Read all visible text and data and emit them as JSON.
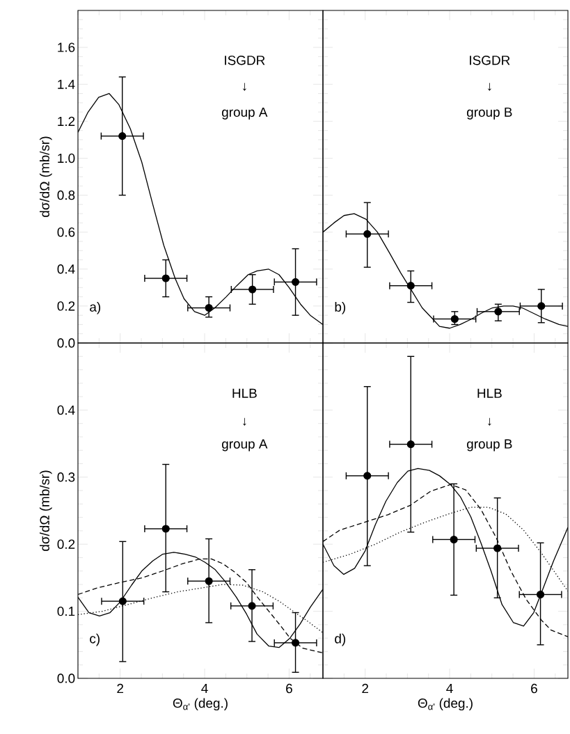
{
  "chart_data": [
    {
      "type": "line",
      "ylabel": "dσ/dΩ (mb/sr)",
      "xlim": [
        1,
        6.8
      ],
      "ylim": [
        0,
        1.8
      ],
      "xticks": [
        2,
        4,
        6
      ],
      "yticks": [
        {
          "value": 0,
          "label": "0.0"
        },
        {
          "value": 0.2,
          "label": "0.2"
        },
        {
          "value": 0.4,
          "label": "0.4"
        },
        {
          "value": 0.6,
          "label": "0.6"
        },
        {
          "value": 0.8,
          "label": "0.8"
        },
        {
          "value": 1.0,
          "label": "1.0"
        },
        {
          "value": 1.2,
          "label": "1.2"
        },
        {
          "value": 1.4,
          "label": "1.4"
        },
        {
          "value": 1.6,
          "label": "1.6"
        }
      ],
      "tick_labels": "y",
      "annotations": [
        "ISGDR",
        "↓",
        "group A",
        "a)"
      ],
      "series": [
        {
          "type": "scatter",
          "color": "#000000",
          "marker": "circle",
          "x": [
            2.05,
            3.08,
            4.1,
            5.13,
            6.15
          ],
          "values": [
            1.12,
            0.35,
            0.19,
            0.29,
            0.33
          ],
          "errors": [
            [
              0.8,
              1.44
            ],
            [
              0.25,
              0.45
            ],
            [
              0.14,
              0.25
            ],
            [
              0.21,
              0.37
            ],
            [
              0.15,
              0.51
            ]
          ],
          "xerrors": [
            0.5,
            0.5,
            0.5,
            0.5,
            0.5
          ]
        },
        {
          "color": "#000000",
          "line_style": "solid",
          "marker": "none",
          "x": [
            1.0,
            1.24,
            1.49,
            1.74,
            1.97,
            2.24,
            2.51,
            2.76,
            3.03,
            3.3,
            3.51,
            3.76,
            4.0,
            4.24,
            4.51,
            4.76,
            5.03,
            5.24,
            5.51,
            5.76,
            6.0,
            6.27,
            6.5,
            6.8
          ],
          "values": [
            1.14,
            1.25,
            1.33,
            1.35,
            1.29,
            1.16,
            0.98,
            0.76,
            0.53,
            0.35,
            0.24,
            0.17,
            0.15,
            0.19,
            0.25,
            0.31,
            0.37,
            0.39,
            0.4,
            0.37,
            0.3,
            0.21,
            0.15,
            0.1
          ]
        }
      ]
    },
    {
      "type": "line",
      "xlim": [
        1,
        6.8
      ],
      "ylim": [
        0,
        1.8
      ],
      "xticks": [
        2,
        4,
        6
      ],
      "yticks": [
        0,
        0.2,
        0.4,
        0.6,
        0.8,
        1.0,
        1.2,
        1.4,
        1.6
      ],
      "tick_labels": false,
      "annotations": [
        "ISGDR",
        "↓",
        "group B",
        "b)"
      ],
      "series": [
        {
          "type": "scatter",
          "color": "#000000",
          "marker": "circle",
          "x": [
            2.05,
            3.08,
            4.12,
            5.15,
            6.17
          ],
          "values": [
            0.59,
            0.31,
            0.13,
            0.17,
            0.2
          ],
          "errors": [
            [
              0.41,
              0.76
            ],
            [
              0.22,
              0.39
            ],
            [
              0.1,
              0.17
            ],
            [
              0.12,
              0.21
            ],
            [
              0.11,
              0.29
            ]
          ],
          "xerrors": [
            0.5,
            0.5,
            0.5,
            0.5,
            0.5
          ]
        },
        {
          "color": "#000000",
          "line_style": "solid",
          "marker": "none",
          "x": [
            1.0,
            1.26,
            1.5,
            1.74,
            2.02,
            2.29,
            2.57,
            2.84,
            3.11,
            3.35,
            3.6,
            3.76,
            4.0,
            4.25,
            4.52,
            4.74,
            5.01,
            5.28,
            5.5,
            5.72,
            5.99,
            6.26,
            6.59,
            6.8
          ],
          "values": [
            0.6,
            0.65,
            0.69,
            0.7,
            0.67,
            0.6,
            0.49,
            0.38,
            0.28,
            0.19,
            0.13,
            0.09,
            0.08,
            0.1,
            0.13,
            0.16,
            0.19,
            0.2,
            0.2,
            0.19,
            0.16,
            0.13,
            0.1,
            0.09
          ]
        }
      ]
    },
    {
      "type": "line",
      "xlabel": "Θ$_{α'}$ (deg.)",
      "ylabel": "dσ/dΩ (mb/sr)",
      "xlim": [
        1,
        6.8
      ],
      "ylim": [
        0,
        0.5
      ],
      "xticks": [
        2,
        4,
        6
      ],
      "yticks": [
        {
          "value": 0,
          "label": "0.0"
        },
        0.1,
        0.2,
        0.3,
        0.4
      ],
      "annotations": [
        "HLB",
        "↓",
        "group A",
        "c)"
      ],
      "series": [
        {
          "type": "scatter",
          "color": "#000000",
          "marker": "circle",
          "x": [
            2.06,
            3.08,
            4.1,
            5.12,
            6.15
          ],
          "values": [
            0.115,
            0.223,
            0.145,
            0.108,
            0.053
          ],
          "errors": [
            [
              0.025,
              0.204
            ],
            [
              0.129,
              0.319
            ],
            [
              0.083,
              0.208
            ],
            [
              0.055,
              0.162
            ],
            [
              0.009,
              0.098
            ]
          ],
          "xerrors": [
            0.5,
            0.5,
            0.5,
            0.5,
            0.5
          ]
        },
        {
          "color": "#000000",
          "line_style": "solid",
          "marker": "none",
          "x": [
            1.0,
            1.26,
            1.51,
            1.76,
            2.0,
            2.27,
            2.51,
            2.77,
            3.0,
            3.27,
            3.54,
            3.78,
            4.01,
            4.25,
            4.49,
            4.75,
            4.99,
            5.24,
            5.52,
            5.76,
            6.02,
            6.26,
            6.5,
            6.8
          ],
          "values": [
            0.121,
            0.098,
            0.093,
            0.098,
            0.114,
            0.139,
            0.16,
            0.175,
            0.185,
            0.188,
            0.185,
            0.181,
            0.173,
            0.162,
            0.144,
            0.121,
            0.096,
            0.066,
            0.048,
            0.046,
            0.06,
            0.081,
            0.106,
            0.133
          ]
        },
        {
          "color": "#000000",
          "line_style": "dashed",
          "marker": "none",
          "x": [
            1.0,
            1.47,
            2.0,
            2.53,
            3.0,
            3.48,
            3.89,
            4.16,
            4.43,
            4.72,
            4.99,
            5.25,
            5.52,
            5.79,
            6.02,
            6.32,
            6.8
          ],
          "values": [
            0.125,
            0.135,
            0.143,
            0.15,
            0.16,
            0.171,
            0.178,
            0.178,
            0.171,
            0.158,
            0.143,
            0.121,
            0.1,
            0.079,
            0.06,
            0.045,
            0.038
          ]
        },
        {
          "color": "#000000",
          "line_style": "dotted",
          "marker": "none",
          "x": [
            1.0,
            1.58,
            2.18,
            2.77,
            3.36,
            3.95,
            4.43,
            4.9,
            5.38,
            5.79,
            6.14,
            6.44,
            6.8
          ],
          "values": [
            0.095,
            0.1,
            0.11,
            0.12,
            0.129,
            0.135,
            0.14,
            0.139,
            0.129,
            0.114,
            0.098,
            0.085,
            0.068
          ]
        }
      ]
    },
    {
      "type": "line",
      "xlabel": "Θ$_{α'}$ (deg.)",
      "xlim": [
        1,
        6.8
      ],
      "ylim": [
        0,
        0.5
      ],
      "xticks": [
        2,
        4,
        6
      ],
      "yticks": [
        0,
        0.1,
        0.2,
        0.3,
        0.4
      ],
      "tick_labels": "x",
      "annotations": [
        "HLB",
        "↓",
        "group B",
        "d)"
      ],
      "series": [
        {
          "type": "scatter",
          "color": "#000000",
          "marker": "circle",
          "x": [
            2.05,
            3.08,
            4.1,
            5.13,
            6.15
          ],
          "values": [
            0.302,
            0.349,
            0.207,
            0.194,
            0.125
          ],
          "errors": [
            [
              0.168,
              0.435
            ],
            [
              0.218,
              0.48
            ],
            [
              0.124,
              0.29
            ],
            [
              0.12,
              0.269
            ],
            [
              0.05,
              0.202
            ]
          ],
          "xerrors": [
            0.5,
            0.5,
            0.5,
            0.5,
            0.5
          ]
        },
        {
          "color": "#000000",
          "line_style": "solid",
          "marker": "none",
          "x": [
            1.0,
            1.26,
            1.49,
            1.75,
            2.0,
            2.24,
            2.49,
            2.76,
            3.01,
            3.25,
            3.52,
            3.76,
            4.02,
            4.26,
            4.5,
            4.74,
            4.98,
            5.24,
            5.51,
            5.75,
            5.99,
            6.23,
            6.46,
            6.8
          ],
          "values": [
            0.2,
            0.168,
            0.155,
            0.164,
            0.19,
            0.229,
            0.264,
            0.292,
            0.309,
            0.313,
            0.31,
            0.302,
            0.289,
            0.27,
            0.241,
            0.202,
            0.16,
            0.11,
            0.083,
            0.078,
            0.098,
            0.137,
            0.175,
            0.225
          ]
        },
        {
          "color": "#000000",
          "line_style": "dashed",
          "marker": "none",
          "x": [
            1.0,
            1.4,
            2.0,
            2.54,
            3.07,
            3.55,
            4.02,
            4.38,
            4.74,
            5.1,
            5.45,
            5.81,
            6.17,
            6.4,
            6.8
          ],
          "values": [
            0.204,
            0.221,
            0.233,
            0.244,
            0.258,
            0.279,
            0.289,
            0.281,
            0.252,
            0.21,
            0.16,
            0.118,
            0.087,
            0.072,
            0.062
          ]
        },
        {
          "color": "#000000",
          "line_style": "dotted",
          "marker": "none",
          "x": [
            1.0,
            1.64,
            2.24,
            2.83,
            3.43,
            4.02,
            4.5,
            4.92,
            5.33,
            5.75,
            6.17,
            6.8
          ],
          "values": [
            0.173,
            0.185,
            0.2,
            0.218,
            0.233,
            0.246,
            0.255,
            0.255,
            0.245,
            0.221,
            0.187,
            0.13
          ]
        }
      ]
    }
  ]
}
